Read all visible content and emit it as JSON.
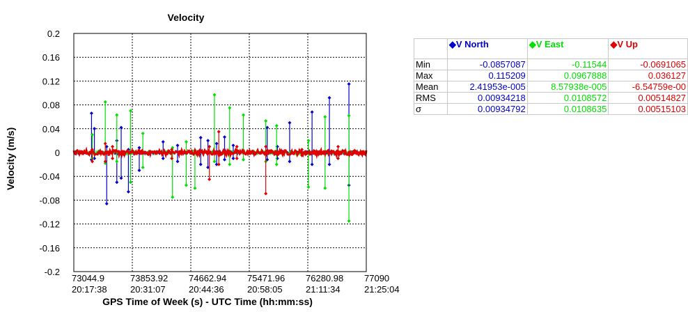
{
  "chart_data": {
    "type": "line",
    "title": "Velocity",
    "ylabel": "Velocity (m/s)",
    "xlabel": "GPS Time of Week (s) - UTC Time (hh:mm:ss)",
    "xlim": [
      73044.9,
      77090
    ],
    "ylim": [
      -0.2,
      0.2
    ],
    "yticks": [
      "0.2",
      "0.16",
      "0.12",
      "0.08",
      "0.04",
      "0",
      "-0.04",
      "-0.08",
      "-0.12",
      "-0.16",
      "-0.2"
    ],
    "xticks": [
      {
        "gps": "73044.9",
        "utc": "20:17:38"
      },
      {
        "gps": "73853.92",
        "utc": "20:31:07"
      },
      {
        "gps": "74662.94",
        "utc": "20:44:36"
      },
      {
        "gps": "75471.96",
        "utc": "20:58:05"
      },
      {
        "gps": "76280.98",
        "utc": "21:11:34"
      },
      {
        "gps": "77090",
        "utc": "21:25:04"
      }
    ],
    "grid": true,
    "series": [
      {
        "name": "V North",
        "color": "#0000cc",
        "spikes": [
          [
            73290,
            0.066,
            -0.012
          ],
          [
            73330,
            0.04,
            -0.01
          ],
          [
            73500,
            0.01,
            -0.086
          ],
          [
            73640,
            0.02,
            -0.05
          ],
          [
            73700,
            0.042,
            -0.043
          ],
          [
            73800,
            0.005,
            -0.066
          ],
          [
            73950,
            0.008,
            -0.03
          ],
          [
            74280,
            0.018,
            -0.01
          ],
          [
            74480,
            0.012,
            -0.015
          ],
          [
            74800,
            0.025,
            -0.02
          ],
          [
            74900,
            0.02,
            -0.025
          ],
          [
            75020,
            0.015,
            -0.02
          ],
          [
            75130,
            0.026,
            -0.012
          ],
          [
            75250,
            0.012,
            -0.01
          ],
          [
            75720,
            0.042,
            -0.012
          ],
          [
            75860,
            0.01,
            -0.01
          ],
          [
            76030,
            0.05,
            -0.015
          ],
          [
            76340,
            0.068,
            -0.02
          ],
          [
            76580,
            0.092,
            -0.02
          ],
          [
            76850,
            0.115,
            -0.055
          ]
        ],
        "noise": 0.003
      },
      {
        "name": "V East",
        "color": "#00e000",
        "spikes": [
          [
            73300,
            0.03,
            -0.01
          ],
          [
            73480,
            0.085,
            -0.018
          ],
          [
            73640,
            0.063,
            -0.015
          ],
          [
            73830,
            0.07,
            -0.05
          ],
          [
            74000,
            0.032,
            -0.025
          ],
          [
            74410,
            0.008,
            -0.075
          ],
          [
            74600,
            0.018,
            -0.055
          ],
          [
            74720,
            0.004,
            -0.06
          ],
          [
            74990,
            0.097,
            -0.015
          ],
          [
            75200,
            0.075,
            -0.02
          ],
          [
            75390,
            0.063,
            -0.012
          ],
          [
            75700,
            0.053,
            -0.015
          ],
          [
            75850,
            0.045,
            -0.02
          ],
          [
            76290,
            0.02,
            -0.058
          ],
          [
            76520,
            0.06,
            -0.06
          ],
          [
            76850,
            0.062,
            -0.115
          ]
        ],
        "noise": 0.003
      },
      {
        "name": "V Up",
        "color": "#e00000",
        "spikes": [
          [
            73300,
            0.005,
            -0.015
          ],
          [
            73480,
            0.015,
            -0.015
          ],
          [
            73580,
            0.01,
            -0.01
          ],
          [
            74400,
            0.005,
            -0.01
          ],
          [
            74920,
            0.01,
            -0.045
          ],
          [
            75050,
            0.035,
            -0.02
          ],
          [
            75300,
            0.01,
            -0.01
          ],
          [
            75700,
            0.01,
            -0.069
          ],
          [
            76200,
            0.005,
            -0.005
          ],
          [
            76700,
            0.01,
            -0.01
          ]
        ],
        "noise": 0.004
      }
    ]
  },
  "stats": {
    "headers": {
      "north": "V North",
      "east": "V East",
      "up": "V Up"
    },
    "rows": [
      {
        "label": "Min",
        "north": "-0.0857087",
        "east": "-0.11544",
        "up": "-0.0691065"
      },
      {
        "label": "Max",
        "north": "0.115209",
        "east": "0.0967888",
        "up": "0.036127"
      },
      {
        "label": "Mean",
        "north": "2.41953e-005",
        "east": "8.57938e-005",
        "up": "-6.54759e-00"
      },
      {
        "label": "RMS",
        "north": "0.00934218",
        "east": "0.0108572",
        "up": "0.00514827"
      },
      {
        "label": "σ",
        "north": "0.00934792",
        "east": "0.0108635",
        "up": "0.00515103"
      }
    ]
  }
}
